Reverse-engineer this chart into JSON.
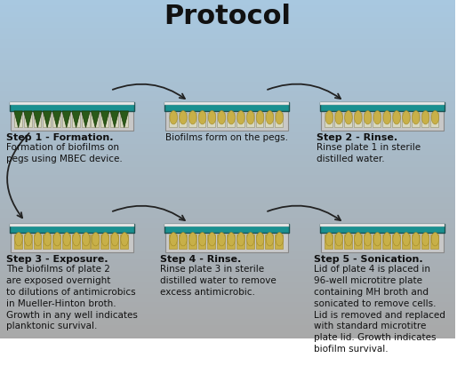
{
  "title": "Protocol",
  "title_fontsize": 22,
  "title_fontweight": "bold",
  "background_top": "#a8c8e0",
  "background_bottom": "#a8a8a8",
  "plate_teal": "#1a9090",
  "plate_dark": "#1a5050",
  "peg_color_green": "#2d5a1b",
  "peg_color_yellow": "#c8b048",
  "well_color_yellow": "#c8b048",
  "well_color_empty": "#d8d8c0",
  "step1_title": "Step 1 - Formation.",
  "step1_text": "Formation of biofilms on\npegs using MBEC device.",
  "step2_title": "Step 2 - Rinse.",
  "step2_text": "Rinse plate 1 in sterile\ndistilled water.",
  "step3_title": "Step 3 - Exposure.",
  "step3_text": "The biofilms of plate 2\nare exposed overnight\nto dilutions of antimicrobics\nin Mueller-Hinton broth.\nGrowth in any well indicates\nplanktonic survival.",
  "step4_title": "Step 4 - Rinse.",
  "step4_text": "Rinse plate 3 in sterile\ndistilled water to remove\nexcess antimicrobic.",
  "step5_title": "Step 5 - Sonication.",
  "step5_text": "Lid of plate 4 is placed in\n96-well microtitre plate\ncontaining MH broth and\nsonicated to remove cells.\nLid is removed and replaced\nwith standard microtitre\nplate lid. Growth indicates\nbiofilm survival.",
  "middle_text": "Biofilms form on the pegs.",
  "label_fontsize": 7.5,
  "step_title_fontsize": 8.0
}
